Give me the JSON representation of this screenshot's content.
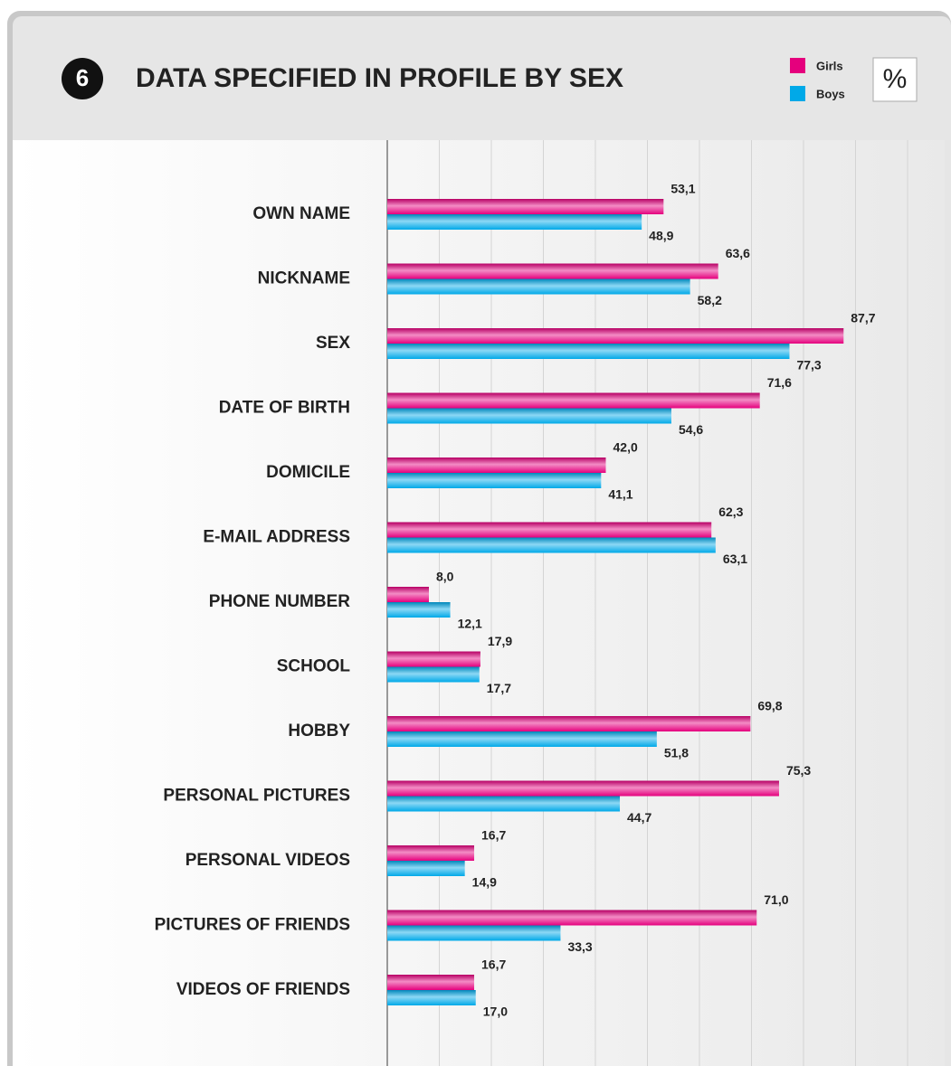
{
  "chart_data": {
    "type": "hbar",
    "badge": "6",
    "title": "DATA SPECIFIED IN PROFILE BY SEX",
    "unit": "%",
    "categories": [
      "OWN NAME",
      "NICKNAME",
      "SEX",
      "DATE OF BIRTH",
      "DOMICILE",
      "E-MAIL ADDRESS",
      "PHONE NUMBER",
      "SCHOOL",
      "HOBBY",
      "PERSONAL PICTURES",
      "PERSONAL VIDEOS",
      "PICTURES OF FRIENDS",
      "VIDEOS OF FRIENDS"
    ],
    "series": [
      {
        "name": "Girls",
        "color": "#e5007d",
        "values": [
          53.1,
          63.6,
          87.7,
          71.6,
          42.0,
          62.3,
          8.0,
          17.9,
          69.8,
          75.3,
          16.7,
          71.0,
          16.7
        ],
        "value_labels": [
          "53,1",
          "63,6",
          "87,7",
          "71,6",
          "42,0",
          "62,3",
          "8,0",
          "17,9",
          "69,8",
          "75,3",
          "16,7",
          "71,0",
          "16,7"
        ]
      },
      {
        "name": "Boys",
        "color": "#00a9e8",
        "values": [
          48.9,
          58.2,
          77.3,
          54.6,
          41.1,
          63.1,
          12.1,
          17.7,
          51.8,
          44.7,
          14.9,
          33.3,
          17.0
        ],
        "value_labels": [
          "48,9",
          "58,2",
          "77,3",
          "54,6",
          "41,1",
          "63,1",
          "12,1",
          "17,7",
          "51,8",
          "44,7",
          "14,9",
          "33,3",
          "17,0"
        ]
      }
    ],
    "xlim": [
      0,
      100
    ],
    "xticks": [
      0,
      10,
      20,
      30,
      40,
      50,
      60,
      70,
      80,
      90,
      100
    ],
    "grid": true
  }
}
